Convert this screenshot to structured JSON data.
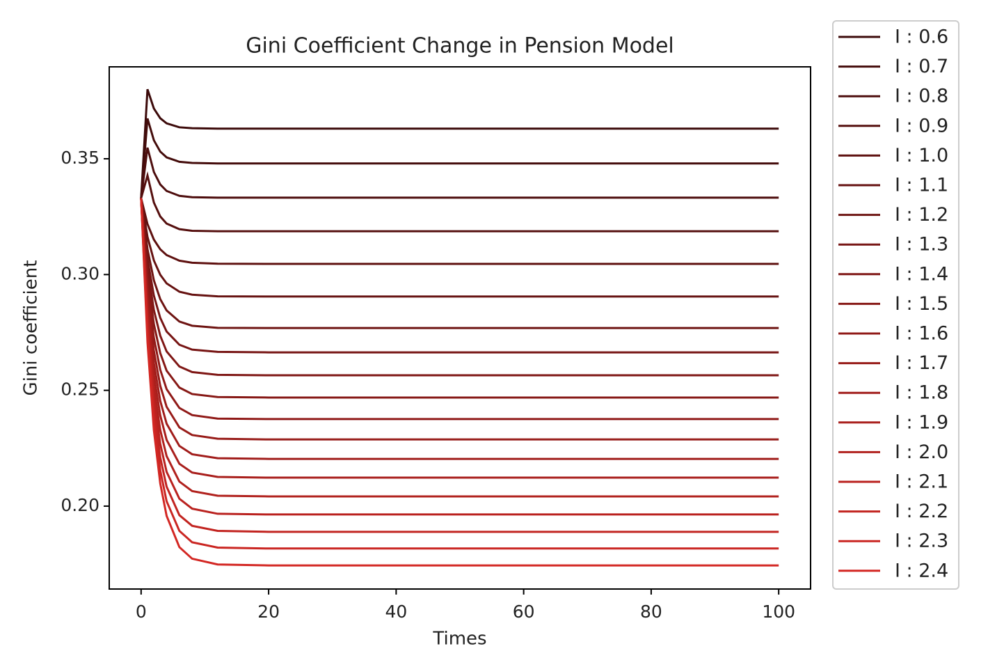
{
  "chart_data": {
    "type": "line",
    "title": "Gini Coefficient Change in Pension Model",
    "x_label": "Times",
    "y_label": "Gini coefficient",
    "x": [
      0,
      1,
      2,
      3,
      4,
      6,
      8,
      12,
      20,
      100
    ],
    "xlim": [
      -5,
      105
    ],
    "xticks": [
      0,
      20,
      40,
      60,
      80,
      100
    ],
    "ylim": [
      0.1642,
      0.3897
    ],
    "yticks": [
      {
        "value": 0.2,
        "label": "0.20"
      },
      0.25,
      {
        "value": 0.3,
        "label": "0.30"
      },
      0.35
    ],
    "series": [
      {
        "name": "I : 0.6",
        "color": "#3c0a0a",
        "values": [
          0.333,
          0.38,
          0.3717,
          0.3675,
          0.3653,
          0.3636,
          0.3632,
          0.363,
          0.363,
          0.363
        ]
      },
      {
        "name": "I : 0.7",
        "color": "#440c0b",
        "values": [
          0.333,
          0.3674,
          0.358,
          0.3531,
          0.3506,
          0.3487,
          0.3482,
          0.348,
          0.348,
          0.348
        ]
      },
      {
        "name": "I : 0.8",
        "color": "#4d0d0d",
        "values": [
          0.333,
          0.3548,
          0.3443,
          0.3389,
          0.3361,
          0.334,
          0.3334,
          0.3332,
          0.3332,
          0.3332
        ]
      },
      {
        "name": "I : 0.9",
        "color": "#550f0e",
        "values": [
          0.333,
          0.3428,
          0.3311,
          0.3251,
          0.322,
          0.3196,
          0.3189,
          0.3187,
          0.3187,
          0.3187
        ]
      },
      {
        "name": "I : 1.0",
        "color": "#5e100f",
        "values": [
          0.333,
          0.3218,
          0.3151,
          0.3109,
          0.3084,
          0.306,
          0.3051,
          0.3047,
          0.3046,
          0.3046
        ]
      },
      {
        "name": "I : 1.1",
        "color": "#661211",
        "values": [
          0.333,
          0.3163,
          0.3061,
          0.2999,
          0.2962,
          0.2926,
          0.2913,
          0.2906,
          0.2905,
          0.2905
        ]
      },
      {
        "name": "I : 1.2",
        "color": "#6e1412",
        "values": [
          0.333,
          0.311,
          0.2975,
          0.2894,
          0.2845,
          0.2797,
          0.2779,
          0.277,
          0.2769,
          0.2769
        ]
      },
      {
        "name": "I : 1.3",
        "color": "#771514",
        "values": [
          0.333,
          0.3068,
          0.2909,
          0.2813,
          0.2754,
          0.2697,
          0.2676,
          0.2666,
          0.2664,
          0.2664
        ]
      },
      {
        "name": "I : 1.4",
        "color": "#7f1715",
        "values": [
          0.333,
          0.3029,
          0.2847,
          0.2736,
          0.2668,
          0.2603,
          0.2579,
          0.2567,
          0.2565,
          0.2565
        ]
      },
      {
        "name": "I : 1.5",
        "color": "#871916",
        "values": [
          0.333,
          0.2992,
          0.2786,
          0.2661,
          0.2585,
          0.2512,
          0.2484,
          0.2471,
          0.2469,
          0.2469
        ]
      },
      {
        "name": "I : 1.6",
        "color": "#901a18",
        "values": [
          0.333,
          0.2955,
          0.2727,
          0.2589,
          0.2505,
          0.2424,
          0.2393,
          0.2378,
          0.2376,
          0.2376
        ]
      },
      {
        "name": "I : 1.7",
        "color": "#981c19",
        "values": [
          0.333,
          0.292,
          0.2671,
          0.252,
          0.2429,
          0.234,
          0.2307,
          0.2291,
          0.2288,
          0.2288
        ]
      },
      {
        "name": "I : 1.8",
        "color": "#a11d1b",
        "values": [
          0.333,
          0.2887,
          0.2618,
          0.2455,
          0.2356,
          0.226,
          0.2224,
          0.2207,
          0.2204,
          0.2204
        ]
      },
      {
        "name": "I : 1.9",
        "color": "#a91f1c",
        "values": [
          0.333,
          0.2856,
          0.2567,
          0.2392,
          0.2286,
          0.2183,
          0.2145,
          0.2126,
          0.2123,
          0.2123
        ]
      },
      {
        "name": "I : 2.0",
        "color": "#b1211d",
        "values": [
          0.333,
          0.2824,
          0.2516,
          0.2329,
          0.2216,
          0.2106,
          0.2065,
          0.2045,
          0.2042,
          0.2042
        ]
      },
      {
        "name": "I : 2.1",
        "color": "#ba221f",
        "values": [
          0.333,
          0.2793,
          0.2467,
          0.2269,
          0.2148,
          0.2032,
          0.1989,
          0.1967,
          0.1964,
          0.1964
        ]
      },
      {
        "name": "I : 2.2",
        "color": "#c22420",
        "values": [
          0.333,
          0.2764,
          0.2419,
          0.221,
          0.2084,
          0.1961,
          0.1915,
          0.1893,
          0.1889,
          0.1889
        ]
      },
      {
        "name": "I : 2.3",
        "color": "#ca2622",
        "values": [
          0.333,
          0.2735,
          0.2374,
          0.2154,
          0.2021,
          0.1893,
          0.1844,
          0.1821,
          0.1817,
          0.1817
        ]
      },
      {
        "name": "I : 2.4",
        "color": "#d32723",
        "values": [
          0.333,
          0.2707,
          0.2328,
          0.2098,
          0.1958,
          0.1823,
          0.1773,
          0.1748,
          0.1744,
          0.1744
        ]
      }
    ]
  }
}
